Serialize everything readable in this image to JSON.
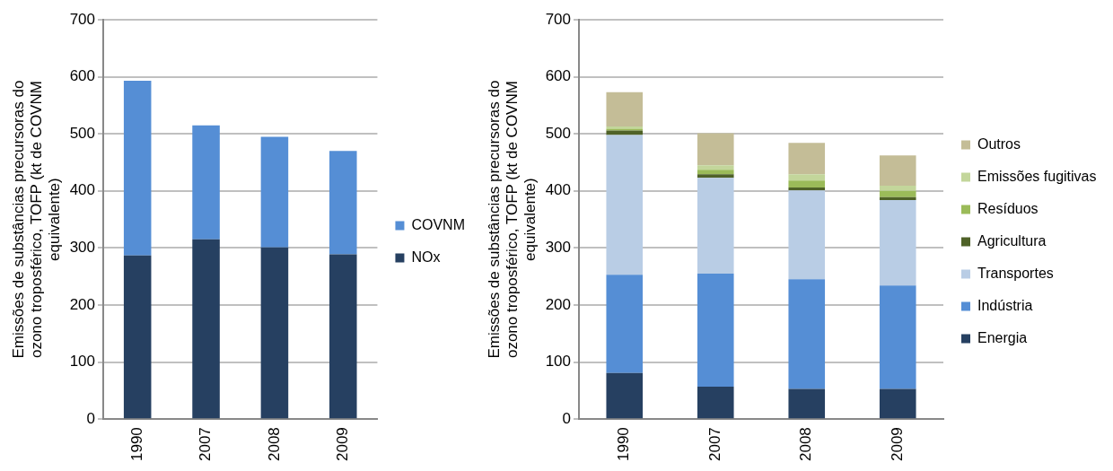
{
  "chart_data": [
    {
      "type": "bar",
      "categories": [
        "1990",
        "2007",
        "2008",
        "2009"
      ],
      "stacked": true,
      "ylabel": "Emissões de substâncias precursoras do ozono troposférico, TOFP (kt de COVNM equivalente)",
      "ylim": [
        0,
        700
      ],
      "yticks": [
        0,
        100,
        200,
        300,
        400,
        500,
        600,
        700
      ],
      "grid": "y",
      "legend": "right",
      "series": [
        {
          "name": "NOx",
          "color": "#264061",
          "values": [
            287,
            315,
            301,
            289
          ]
        },
        {
          "name": "COVNM",
          "color": "#558ed5",
          "values": [
            306,
            200,
            194,
            181
          ]
        }
      ]
    },
    {
      "type": "bar",
      "categories": [
        "1990",
        "2007",
        "2008",
        "2009"
      ],
      "stacked": true,
      "ylabel": "Emissões de substâncias precursoras do ozono troposférico, TOFP (kt de COVNM equivalente)",
      "ylim": [
        0,
        700
      ],
      "yticks": [
        0,
        100,
        200,
        300,
        400,
        500,
        600,
        700
      ],
      "grid": "y",
      "legend": "right",
      "series": [
        {
          "name": "Energia",
          "color": "#264061",
          "values": [
            81,
            57,
            53,
            53
          ]
        },
        {
          "name": "Indústria",
          "color": "#558ed5",
          "values": [
            172,
            198,
            192,
            181
          ]
        },
        {
          "name": "Transportes",
          "color": "#b9cde5",
          "values": [
            245,
            168,
            156,
            150
          ]
        },
        {
          "name": "Agricultura",
          "color": "#4f6228",
          "values": [
            8,
            6,
            5,
            5
          ]
        },
        {
          "name": "Resíduos",
          "color": "#9bbb59",
          "values": [
            3,
            8,
            12,
            11
          ]
        },
        {
          "name": "Emissões fugitivas",
          "color": "#c3d69b",
          "values": [
            4,
            8,
            11,
            9
          ]
        },
        {
          "name": "Outros",
          "color": "#c4bd97",
          "values": [
            60,
            56,
            55,
            53
          ]
        }
      ]
    }
  ]
}
